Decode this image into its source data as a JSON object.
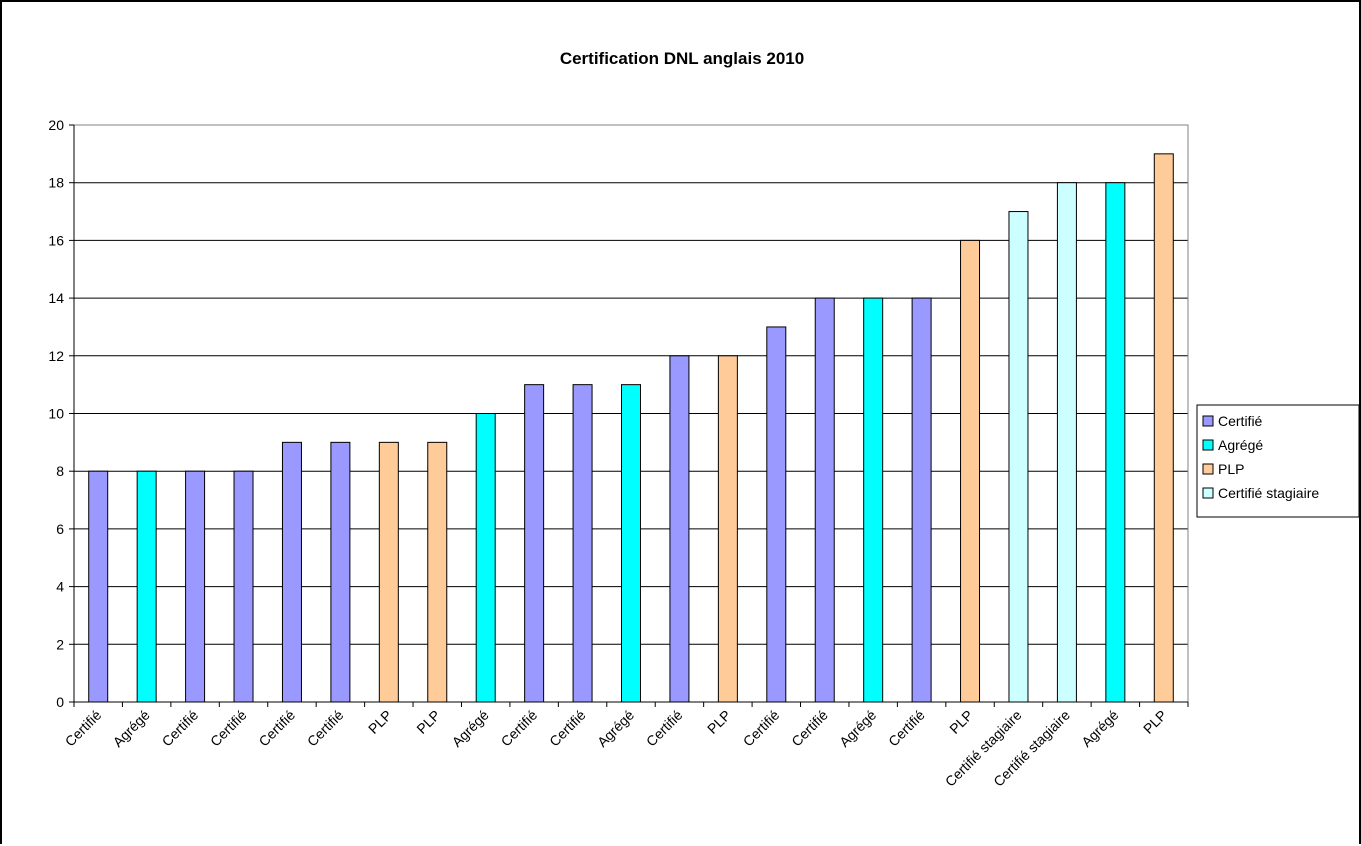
{
  "chart_data": {
    "type": "bar",
    "title": "Certification DNL anglais 2010",
    "xlabel": "",
    "ylabel": "",
    "ylim": [
      0,
      20
    ],
    "ytick_step": 2,
    "yticks": [
      "0",
      "2",
      "4",
      "6",
      "8",
      "10",
      "12",
      "14",
      "16",
      "18",
      "20"
    ],
    "grid": true,
    "legend_position": "right",
    "series": [
      {
        "name": "Certifié",
        "color": "#9999FF"
      },
      {
        "name": "Agrégé",
        "color": "#00FFFF"
      },
      {
        "name": "PLP",
        "color": "#FFCC99"
      },
      {
        "name": "Certifié stagiaire",
        "color": "#CCFFFF"
      }
    ],
    "categories": [
      "Certifié",
      "Agrégé",
      "Certifié",
      "Certifié",
      "Certifié",
      "Certifié",
      "PLP",
      "PLP",
      "Agrégé",
      "Certifié",
      "Certifié",
      "Agrégé",
      "Certifié",
      "PLP",
      "Certifié",
      "Certifié",
      "Agrégé",
      "Certifié",
      "PLP",
      "Certifié stagiaire",
      "Certifié stagiaire",
      "Agrégé",
      "PLP"
    ],
    "values": [
      8,
      8,
      8,
      8,
      9,
      9,
      9,
      9,
      10,
      11,
      11,
      11,
      12,
      12,
      13,
      14,
      14,
      14,
      16,
      17,
      18,
      18,
      19
    ],
    "series_index": [
      0,
      1,
      0,
      0,
      0,
      0,
      2,
      2,
      1,
      0,
      0,
      1,
      0,
      2,
      0,
      0,
      1,
      0,
      2,
      3,
      3,
      1,
      2
    ]
  }
}
